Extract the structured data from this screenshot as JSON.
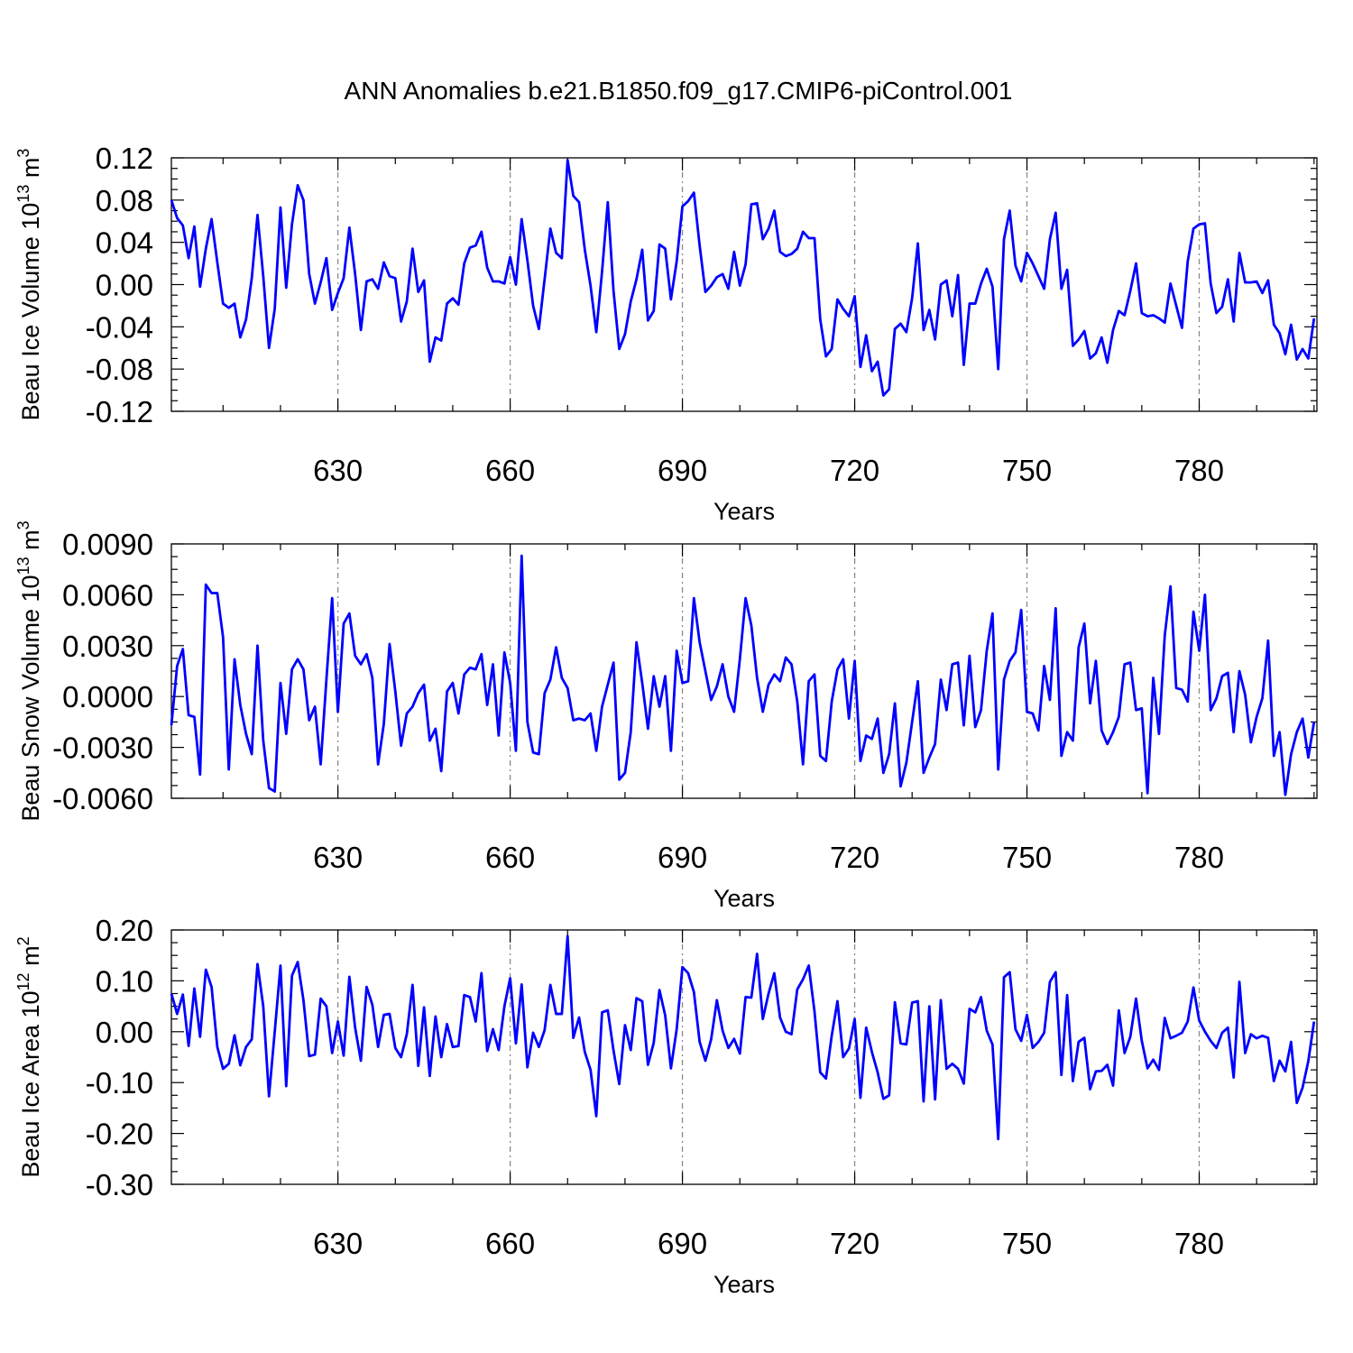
{
  "figure": {
    "title": "ANN Anomalies b.e21.B1850.f09_g17.CMIP6-piControl.001",
    "line_color": "#0000ff"
  },
  "chart_data": [
    {
      "type": "line",
      "ylabel": "Beau Ice Volume 10",
      "ylabel_sup": "13",
      "ylabel_unit": "m",
      "ylabel_unit_sup": "3",
      "xlabel": "Years",
      "xlim": [
        601,
        800
      ],
      "ylim": [
        -0.12,
        0.12
      ],
      "yticks": [
        "0.12",
        "0.08",
        "0.04",
        "0.00",
        "-0.04",
        "-0.08",
        "-0.12"
      ],
      "xticks": [
        "630",
        "660",
        "690",
        "720",
        "750",
        "780"
      ],
      "series": [
        {
          "name": "Beau Ice Volume",
          "x_start": 601,
          "x_step": 1,
          "values": [
            0.08,
            0.063,
            0.056,
            0.025,
            0.055,
            -0.002,
            0.034,
            0.062,
            0.021,
            -0.018,
            -0.022,
            -0.018,
            -0.05,
            -0.033,
            0.006,
            0.066,
            0.008,
            -0.06,
            -0.023,
            0.073,
            -0.003,
            0.057,
            0.094,
            0.08,
            0.01,
            -0.018,
            0.002,
            0.025,
            -0.024,
            -0.008,
            0.006,
            0.054,
            0.01,
            -0.043,
            0.003,
            0.005,
            -0.004,
            0.021,
            0.008,
            0.006,
            -0.035,
            -0.016,
            0.034,
            -0.007,
            0.004,
            -0.073,
            -0.05,
            -0.053,
            -0.018,
            -0.013,
            -0.019,
            0.02,
            0.035,
            0.037,
            0.05,
            0.016,
            0.003,
            0.003,
            0.001,
            0.026,
            0.0,
            0.062,
            0.023,
            -0.02,
            -0.042,
            0.005,
            0.053,
            0.03,
            0.025,
            0.118,
            0.084,
            0.078,
            0.033,
            -0.001,
            -0.045,
            0.012,
            0.078,
            -0.006,
            -0.061,
            -0.047,
            -0.016,
            0.005,
            0.033,
            -0.034,
            -0.025,
            0.038,
            0.034,
            -0.014,
            0.022,
            0.074,
            0.079,
            0.087,
            0.037,
            -0.007,
            -0.001,
            0.007,
            0.01,
            -0.004,
            0.031,
            -0.001,
            0.019,
            0.076,
            0.077,
            0.043,
            0.053,
            0.07,
            0.031,
            0.027,
            0.029,
            0.034,
            0.05,
            0.044,
            0.044,
            -0.033,
            -0.068,
            -0.061,
            -0.014,
            -0.023,
            -0.03,
            -0.011,
            -0.078,
            -0.048,
            -0.082,
            -0.073,
            -0.105,
            -0.099,
            -0.042,
            -0.037,
            -0.045,
            -0.013,
            0.039,
            -0.043,
            -0.024,
            -0.052,
            0.0,
            0.004,
            -0.03,
            0.009,
            -0.076,
            -0.018,
            -0.018,
            0.001,
            0.015,
            -0.002,
            -0.08,
            0.043,
            0.07,
            0.018,
            0.003,
            0.03,
            0.02,
            0.008,
            -0.004,
            0.043,
            0.068,
            -0.004,
            0.014,
            -0.058,
            -0.052,
            -0.044,
            -0.07,
            -0.065,
            -0.05,
            -0.074,
            -0.043,
            -0.025,
            -0.029,
            -0.006,
            0.02,
            -0.027,
            -0.03,
            -0.029,
            -0.032,
            -0.036,
            0.001,
            -0.02,
            -0.041,
            0.022,
            0.053,
            0.057,
            0.058,
            0.001,
            -0.027,
            -0.021,
            0.005,
            -0.035,
            0.03,
            0.002,
            0.002,
            0.003,
            -0.008,
            0.004,
            -0.038,
            -0.046,
            -0.066,
            -0.038,
            -0.071,
            -0.061,
            -0.07,
            -0.032
          ]
        }
      ]
    },
    {
      "type": "line",
      "ylabel": "Beau Snow Volume 10",
      "ylabel_sup": "13",
      "ylabel_unit": "m",
      "ylabel_unit_sup": "3",
      "xlabel": "Years",
      "xlim": [
        601,
        800
      ],
      "ylim": [
        -0.006,
        0.009
      ],
      "yticks": [
        "0.0090",
        "0.0060",
        "0.0030",
        "0.0000",
        "-0.0030",
        "-0.0060"
      ],
      "xticks": [
        "630",
        "660",
        "690",
        "720",
        "750",
        "780"
      ],
      "series": [
        {
          "name": "Beau Snow Volume",
          "x_start": 601,
          "x_step": 1,
          "values": [
            -0.0017,
            0.0018,
            0.0028,
            -0.0011,
            -0.0012,
            -0.0046,
            0.0066,
            0.0061,
            0.0061,
            0.0035,
            -0.0043,
            0.0022,
            -0.0005,
            -0.0022,
            -0.0034,
            0.003,
            -0.0026,
            -0.0054,
            -0.0056,
            0.0008,
            -0.0022,
            0.0016,
            0.0022,
            0.0016,
            -0.0014,
            -0.0006,
            -0.004,
            0.001,
            0.0058,
            -0.0009,
            0.0043,
            0.0049,
            0.0024,
            0.0019,
            0.0025,
            0.0011,
            -0.004,
            -0.0016,
            0.0031,
            0.0003,
            -0.0029,
            -0.001,
            -0.0006,
            0.0002,
            0.0007,
            -0.0026,
            -0.0019,
            -0.0044,
            0.0003,
            0.0008,
            -0.001,
            0.0013,
            0.0017,
            0.0016,
            0.0025,
            -0.0005,
            0.0019,
            -0.0023,
            0.0026,
            0.0008,
            -0.0032,
            0.0083,
            -0.0015,
            -0.0033,
            -0.0034,
            0.0002,
            0.001,
            0.0029,
            0.0011,
            0.0005,
            -0.0014,
            -0.0013,
            -0.0014,
            -0.001,
            -0.0032,
            -0.0006,
            0.0007,
            0.002,
            -0.0049,
            -0.0045,
            -0.0021,
            0.0032,
            0.0008,
            -0.0019,
            0.0012,
            -0.0006,
            0.0012,
            -0.0032,
            0.0027,
            0.0008,
            0.0009,
            0.0058,
            0.0032,
            0.0015,
            -0.0002,
            0.0006,
            0.0019,
            0.0,
            -0.0009,
            0.0022,
            0.0058,
            0.0042,
            0.0011,
            -0.0009,
            0.0007,
            0.0013,
            0.0009,
            0.0023,
            0.0019,
            -0.0003,
            -0.004,
            0.0009,
            0.0013,
            -0.0035,
            -0.0038,
            -0.0003,
            0.0016,
            0.0022,
            -0.0013,
            0.0021,
            -0.0038,
            -0.0023,
            -0.0025,
            -0.0013,
            -0.0045,
            -0.0034,
            -0.0004,
            -0.0053,
            -0.0039,
            -0.0015,
            0.0009,
            -0.0045,
            -0.0036,
            -0.0028,
            0.001,
            -0.0008,
            0.0019,
            0.002,
            -0.0017,
            0.0024,
            -0.0018,
            -0.0008,
            0.0027,
            0.0049,
            -0.0043,
            0.001,
            0.0021,
            0.0026,
            0.0051,
            -0.0009,
            -0.001,
            -0.002,
            0.0018,
            -0.0002,
            0.0052,
            -0.0035,
            -0.0021,
            -0.0026,
            0.0029,
            0.0043,
            -0.0004,
            0.0021,
            -0.002,
            -0.0028,
            -0.0021,
            -0.0012,
            0.0019,
            0.002,
            -0.0008,
            -0.0007,
            -0.0057,
            0.0011,
            -0.0022,
            0.0036,
            0.0065,
            0.0005,
            0.0004,
            -0.0003,
            0.005,
            0.0027,
            0.006,
            -0.0008,
            -0.0001,
            0.0012,
            0.0014,
            -0.0021,
            0.0015,
            0.0001,
            -0.0027,
            -0.0012,
            -0.0001,
            0.0033,
            -0.0035,
            -0.0021,
            -0.0058,
            -0.0034,
            -0.0021,
            -0.0013,
            -0.0036,
            -0.0015
          ]
        }
      ]
    },
    {
      "type": "line",
      "ylabel": "Beau Ice Area 10",
      "ylabel_sup": "12",
      "ylabel_unit": "m",
      "ylabel_unit_sup": "2",
      "xlabel": "Years",
      "xlim": [
        601,
        800
      ],
      "ylim": [
        -0.3,
        0.2
      ],
      "yticks": [
        "0.20",
        "0.10",
        "0.00",
        "-0.10",
        "-0.20",
        "-0.30"
      ],
      "xticks": [
        "630",
        "660",
        "690",
        "720",
        "750",
        "780"
      ],
      "series": [
        {
          "name": "Beau Ice Area",
          "x_start": 601,
          "x_step": 1,
          "values": [
            0.075,
            0.035,
            0.073,
            -0.028,
            0.085,
            -0.01,
            0.122,
            0.088,
            -0.03,
            -0.073,
            -0.063,
            -0.007,
            -0.066,
            -0.03,
            -0.015,
            0.133,
            0.05,
            -0.127,
            0.0,
            0.13,
            -0.107,
            0.11,
            0.137,
            0.062,
            -0.048,
            -0.045,
            0.065,
            0.05,
            -0.042,
            0.02,
            -0.047,
            0.108,
            0.008,
            -0.057,
            0.088,
            0.053,
            -0.03,
            0.033,
            0.035,
            -0.032,
            -0.05,
            -0.005,
            0.092,
            -0.067,
            0.048,
            -0.087,
            0.03,
            -0.05,
            0.015,
            -0.03,
            -0.028,
            0.072,
            0.068,
            0.02,
            0.115,
            -0.038,
            0.005,
            -0.036,
            0.05,
            0.105,
            -0.023,
            0.093,
            -0.07,
            -0.002,
            -0.03,
            0.003,
            0.092,
            0.035,
            0.035,
            0.188,
            -0.012,
            0.028,
            -0.04,
            -0.075,
            -0.166,
            0.038,
            0.042,
            -0.037,
            -0.103,
            0.013,
            -0.036,
            0.066,
            0.06,
            -0.065,
            -0.022,
            0.082,
            0.032,
            -0.072,
            0.005,
            0.127,
            0.115,
            0.078,
            -0.02,
            -0.057,
            -0.015,
            0.062,
            0.002,
            -0.032,
            -0.014,
            -0.043,
            0.068,
            0.067,
            0.153,
            0.025,
            0.075,
            0.115,
            0.028,
            0.0,
            -0.005,
            0.083,
            0.103,
            0.13,
            0.04,
            -0.08,
            -0.092,
            -0.008,
            0.06,
            -0.05,
            -0.033,
            0.025,
            -0.13,
            0.008,
            -0.04,
            -0.08,
            -0.132,
            -0.125,
            0.058,
            -0.023,
            -0.025,
            0.057,
            0.06,
            -0.137,
            0.05,
            -0.133,
            0.062,
            -0.073,
            -0.063,
            -0.073,
            -0.102,
            0.045,
            0.038,
            0.068,
            0.002,
            -0.025,
            -0.211,
            0.107,
            0.117,
            0.005,
            -0.018,
            0.033,
            -0.032,
            -0.02,
            -0.002,
            0.098,
            0.117,
            -0.085,
            0.072,
            -0.097,
            -0.02,
            -0.012,
            -0.113,
            -0.078,
            -0.077,
            -0.065,
            -0.106,
            0.042,
            -0.042,
            -0.01,
            0.065,
            -0.018,
            -0.072,
            -0.055,
            -0.075,
            0.027,
            -0.013,
            -0.008,
            -0.002,
            0.02,
            0.087,
            0.022,
            0.0,
            -0.018,
            -0.032,
            -0.002,
            0.008,
            -0.09,
            0.098,
            -0.042,
            -0.005,
            -0.013,
            -0.008,
            -0.012,
            -0.097,
            -0.057,
            -0.078,
            -0.02,
            -0.14,
            -0.11,
            -0.058,
            0.02
          ]
        }
      ]
    }
  ]
}
